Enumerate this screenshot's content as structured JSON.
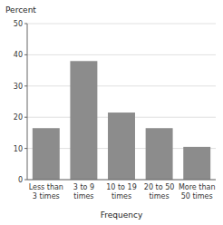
{
  "chart_data": {
    "type": "bar",
    "title": "Percent",
    "xlabel": "Frequency",
    "categories": [
      "Less than\n3 times",
      "3 to 9\ntimes",
      "10 to 19\ntimes",
      "20 to 50\ntimes",
      "More than\n50 times"
    ],
    "values": [
      16.5,
      38.0,
      21.5,
      16.5,
      10.5
    ],
    "color": "#8c8c8c",
    "ylim": [
      0,
      50
    ],
    "yticks": [
      0,
      10,
      20,
      30,
      40,
      50
    ],
    "grid": true
  }
}
